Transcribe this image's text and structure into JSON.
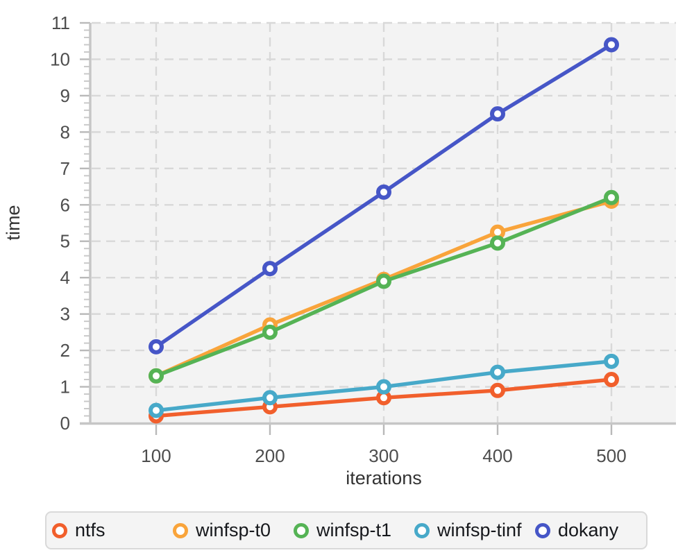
{
  "chart_data": {
    "type": "line",
    "title": "",
    "xlabel": "iterations",
    "ylabel": "time",
    "x": [
      100,
      200,
      300,
      400,
      500
    ],
    "x_tick_labels": [
      "100",
      "200",
      "300",
      "400",
      "500"
    ],
    "y_ticks": [
      0,
      1,
      2,
      3,
      4,
      5,
      6,
      7,
      8,
      9,
      10,
      11
    ],
    "xlim": [
      43,
      557
    ],
    "ylim": [
      0,
      11
    ],
    "grid": "dashed",
    "legend_position": "bottom",
    "series": [
      {
        "name": "ntfs",
        "color": "#F15F2C",
        "values": [
          0.2,
          0.45,
          0.7,
          0.9,
          1.2
        ]
      },
      {
        "name": "winfsp-t0",
        "color": "#F9A43B",
        "values": [
          1.3,
          2.7,
          3.95,
          5.25,
          6.1
        ]
      },
      {
        "name": "winfsp-t1",
        "color": "#55B355",
        "values": [
          1.3,
          2.5,
          3.9,
          4.95,
          6.2
        ]
      },
      {
        "name": "winfsp-tinf",
        "color": "#47A9C9",
        "values": [
          0.35,
          0.7,
          1.0,
          1.4,
          1.7
        ]
      },
      {
        "name": "dokany",
        "color": "#4656C7",
        "values": [
          2.1,
          4.25,
          6.35,
          8.5,
          10.4
        ]
      }
    ],
    "colors": {
      "plot_bg": "#f3f3f3",
      "grid": "#d8d8d8",
      "axis_line": "#c6c6c6",
      "major_tick": "#b9b9b9",
      "minor_tick": "#c9c9c9",
      "tick_label": "#4d4d4d",
      "axis_title": "#333333",
      "legend_bg": "#f4f4f4",
      "legend_border": "#d9d9d9",
      "legend_text": "#16181c",
      "marker_fill": "#ffffff"
    }
  }
}
